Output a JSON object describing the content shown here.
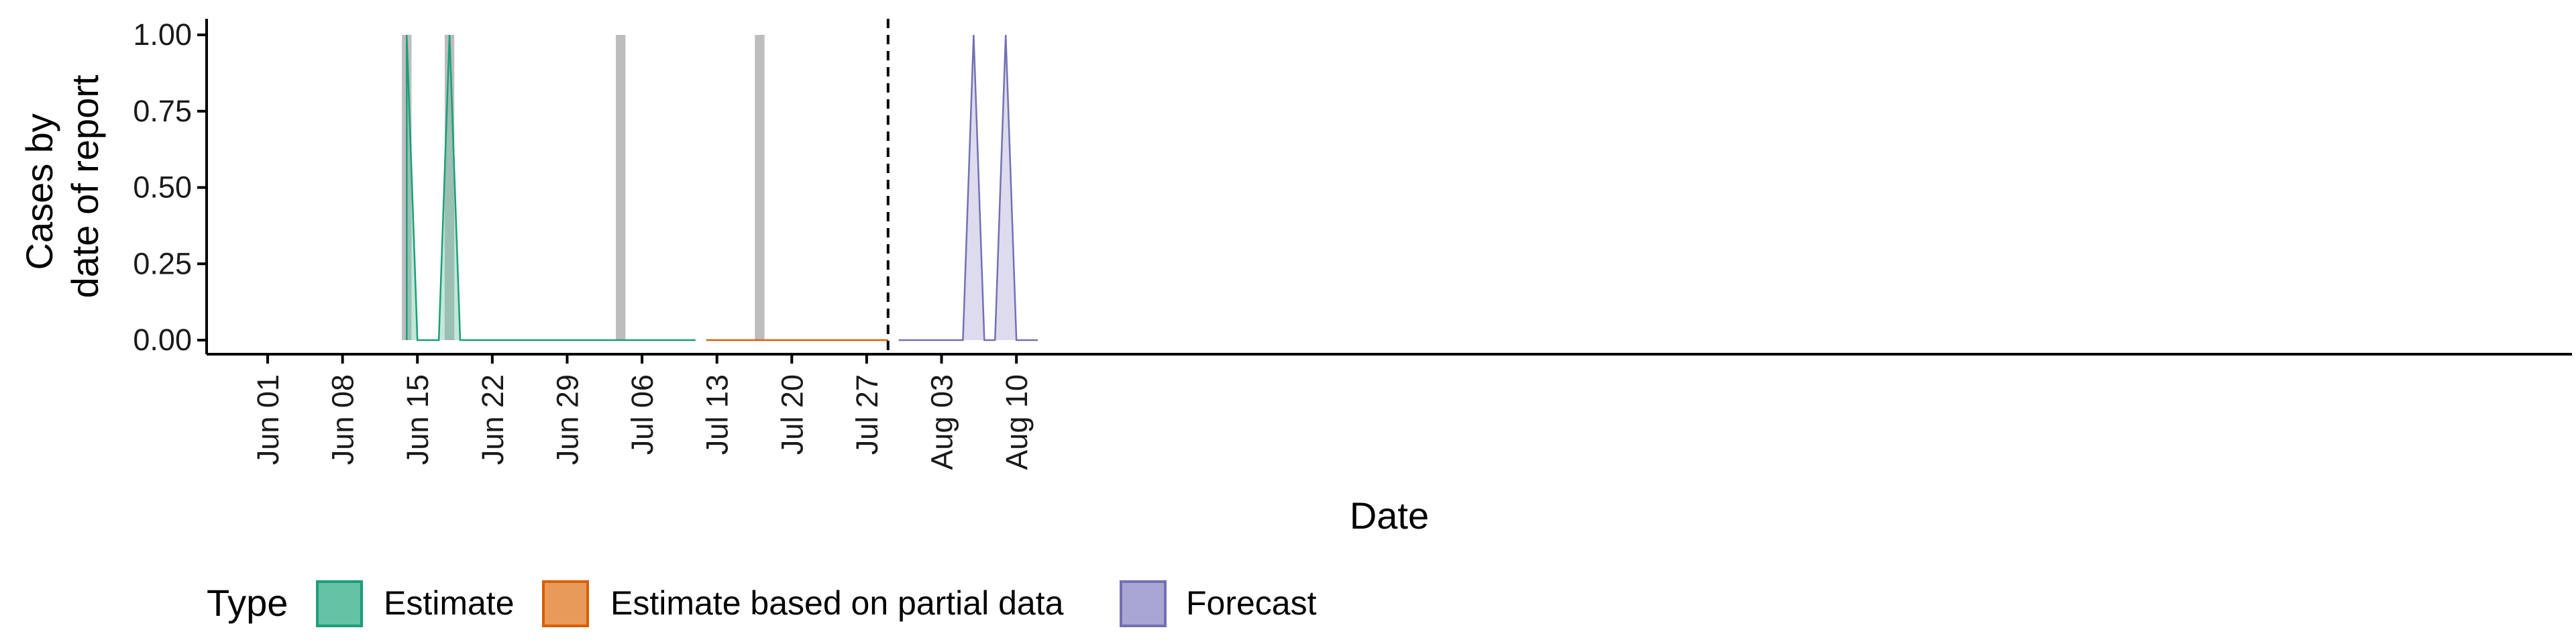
{
  "chart_data": {
    "type": "area",
    "xlabel": "Date",
    "ylabel_lines": [
      "Cases by",
      "date of report"
    ],
    "x_ticks": [
      "Jun 01",
      "Jun 08",
      "Jun 15",
      "Jun 22",
      "Jun 29",
      "Jul 06",
      "Jul 13",
      "Jul 20",
      "Jul 27",
      "Aug 03",
      "Aug 10"
    ],
    "x_tick_dates": [
      "2020-06-01",
      "2020-06-08",
      "2020-06-15",
      "2020-06-22",
      "2020-06-29",
      "2020-07-06",
      "2020-07-13",
      "2020-07-20",
      "2020-07-27",
      "2020-08-03",
      "2020-08-10"
    ],
    "y_ticks": [
      "0.00",
      "0.25",
      "0.50",
      "0.75",
      "1.00"
    ],
    "ylim": [
      0,
      1
    ],
    "xlim": [
      "2020-05-30",
      "2020-08-15"
    ],
    "grid": false,
    "legend_placement": "bottom",
    "legend": {
      "title": "Type",
      "items": [
        {
          "label": "Estimate",
          "fill": "#66c2a5",
          "stroke": "#1b9e77"
        },
        {
          "label": "Estimate based on partial data",
          "fill": "#e89a5b",
          "stroke": "#d95f02"
        },
        {
          "label": "Forecast",
          "fill": "#a9a6d3",
          "stroke": "#7570b3"
        }
      ]
    },
    "reported_cases": [
      {
        "date": "2020-06-14",
        "value": 1
      },
      {
        "date": "2020-06-18",
        "value": 1
      },
      {
        "date": "2020-07-04",
        "value": 1
      },
      {
        "date": "2020-07-17",
        "value": 1
      }
    ],
    "series": [
      {
        "type": "Estimate",
        "points": [
          [
            "2020-06-14",
            0
          ],
          [
            "2020-06-14",
            1
          ],
          [
            "2020-06-15",
            0
          ],
          [
            "2020-06-17",
            0
          ],
          [
            "2020-06-18",
            1
          ],
          [
            "2020-06-19",
            0
          ],
          [
            "2020-07-11",
            0
          ]
        ]
      },
      {
        "type": "Estimate based on partial data",
        "points": [
          [
            "2020-07-12",
            0
          ],
          [
            "2020-07-29",
            0
          ]
        ]
      },
      {
        "type": "Forecast",
        "points": [
          [
            "2020-07-30",
            0
          ],
          [
            "2020-08-05",
            0
          ],
          [
            "2020-08-06",
            1
          ],
          [
            "2020-08-07",
            0
          ],
          [
            "2020-08-08",
            0
          ],
          [
            "2020-08-09",
            1
          ],
          [
            "2020-08-10",
            0
          ],
          [
            "2020-08-12",
            0
          ]
        ]
      }
    ],
    "forecast_start_line": "2020-07-29"
  }
}
